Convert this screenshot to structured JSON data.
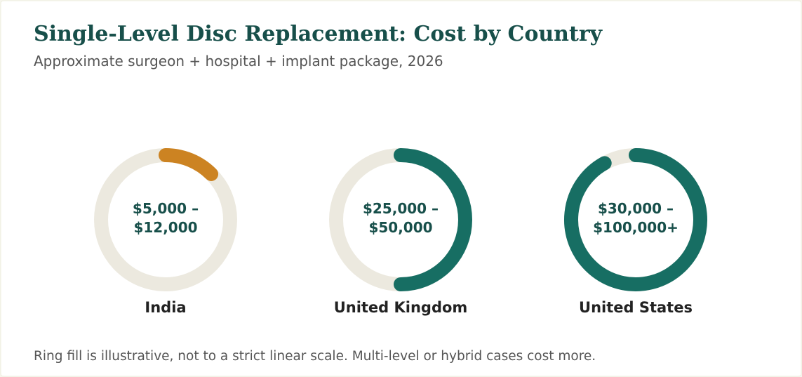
{
  "chart_data": {
    "type": "ring",
    "title": "Single-Level Disc Replacement: Cost by Country",
    "subtitle": "Approximate surgeon + hospital + implant package, 2026",
    "categories": [
      "India",
      "United Kingdom",
      "United States"
    ],
    "ranges": [
      [
        "$5,000 –",
        "$12,000"
      ],
      [
        "$25,000 –",
        "$50,000"
      ],
      [
        "$30,000 –",
        "$100,000+"
      ]
    ],
    "fill": [
      12.5,
      50,
      92
    ],
    "colors": [
      "#cc8322",
      "#176e63",
      "#176e63"
    ],
    "track_color": "#ece9df",
    "note": "Ring fill is illustrative, not to a strict linear scale. Multi-level or hybrid cases cost more."
  }
}
